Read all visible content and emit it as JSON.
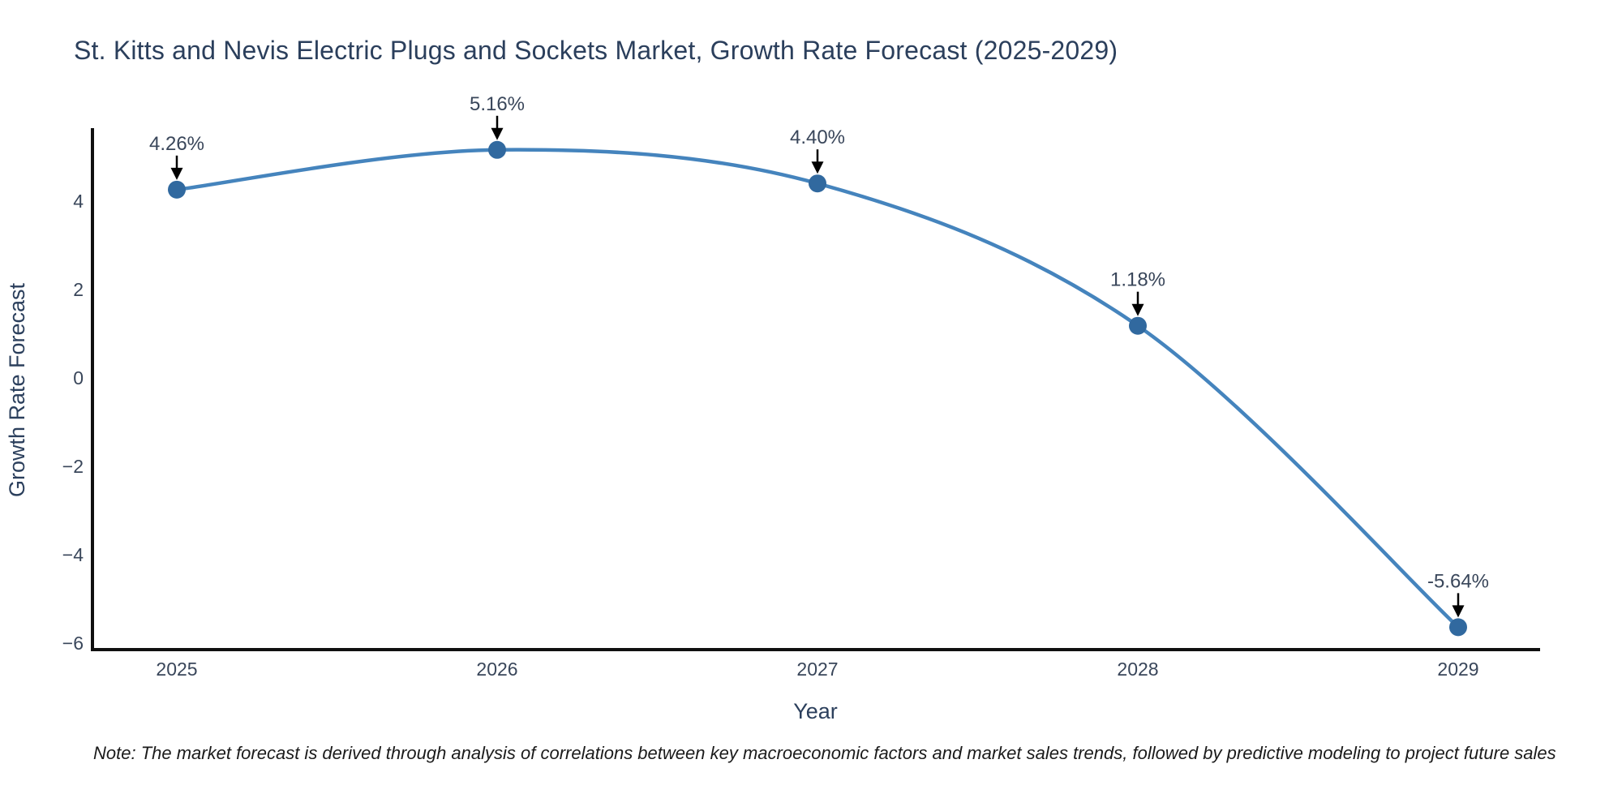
{
  "chart_data": {
    "type": "line",
    "title": "St. Kitts and Nevis Electric Plugs and Sockets Market, Growth Rate Forecast (2025-2029)",
    "xlabel": "Year",
    "ylabel": "Growth Rate Forecast",
    "categories": [
      "2025",
      "2026",
      "2027",
      "2028",
      "2029"
    ],
    "series": [
      {
        "name": "Growth Rate Forecast",
        "values": [
          4.26,
          5.16,
          4.4,
          1.18,
          -5.64
        ]
      }
    ],
    "point_labels": [
      "4.26%",
      "5.16%",
      "4.40%",
      "1.18%",
      "-5.64%"
    ],
    "ytick_values": [
      4,
      2,
      0,
      -2,
      -4,
      -6
    ],
    "ytick_labels": [
      "4",
      "2",
      "0",
      "−2",
      "−4",
      "−6"
    ],
    "ylim": [
      -6.15,
      5.6
    ],
    "grid": false,
    "legend": "none",
    "line_color": "#4584bd",
    "marker_color": "#31699f",
    "axis_color": "#101010",
    "title_color": "#2b3f5c",
    "tick_color": "#39465a",
    "annotation_color": "#39465a",
    "arrow_color": "#000000"
  },
  "note": {
    "text": "Note: The market forecast is derived through analysis of correlations between key macroeconomic factors and market sales trends, followed by predictive modeling to project future sales"
  }
}
